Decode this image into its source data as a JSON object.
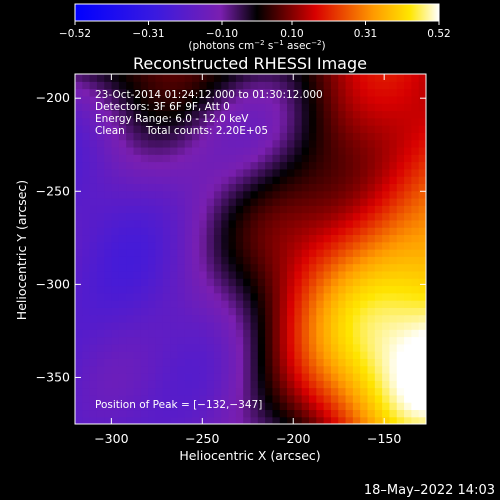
{
  "chart_data": {
    "type": "heatmap",
    "title": "Reconstructed RHESSI Image",
    "xlabel": "Heliocentric X (arcsec)",
    "ylabel": "Heliocentric Y (arcsec)",
    "xlim": [
      -320,
      -127
    ],
    "ylim": [
      -375,
      -187
    ],
    "x_ticks": [
      -300,
      -250,
      -200,
      -150
    ],
    "y_ticks": [
      -200,
      -250,
      -300,
      -350
    ],
    "x_tick_labels": [
      "−300",
      "−250",
      "−200",
      "−150"
    ],
    "y_tick_labels": [
      "−200",
      "−250",
      "−300",
      "−350"
    ],
    "colorbar": {
      "min": -0.52,
      "max": 0.52,
      "ticks": [
        -0.52,
        -0.31,
        -0.1,
        0.1,
        0.31,
        0.52
      ],
      "tick_labels": [
        "−0.52",
        "−0.31",
        "−0.10",
        "0.10",
        "0.31",
        "0.52"
      ],
      "unit_prefix": "(photons cm",
      "unit_exp1": "−2",
      "unit_mid": " s",
      "unit_exp2": "−1",
      "unit_mid2": " asec",
      "unit_exp3": "−2",
      "unit_suffix": ")"
    },
    "peak": {
      "x": -132,
      "y": -347,
      "value": 0.52
    },
    "trend": "intensity rises toward lower-right (bright source near peak), low/negative values toward upper-left",
    "annotations": {
      "time": "23-Oct-2014 01:24:12.000 to 01:30:12.000",
      "detectors": "Detectors: 3F 6F 9F, Att 0",
      "energy": "Energy Range: 6.0 - 12.0 keV",
      "clean_label": "Clean",
      "total_counts": "Total counts: 2.20E+05",
      "peak_label": "Position of Peak = [−132,−347]"
    },
    "colors": {
      "low": "#0000ff",
      "mid_low": "#6a1ac8",
      "mid": "#000000",
      "mid_high": "#d80000",
      "high": "#ffe600",
      "top": "#ffffff"
    }
  },
  "footer": {
    "timestamp": "18–May–2022 14:03"
  }
}
